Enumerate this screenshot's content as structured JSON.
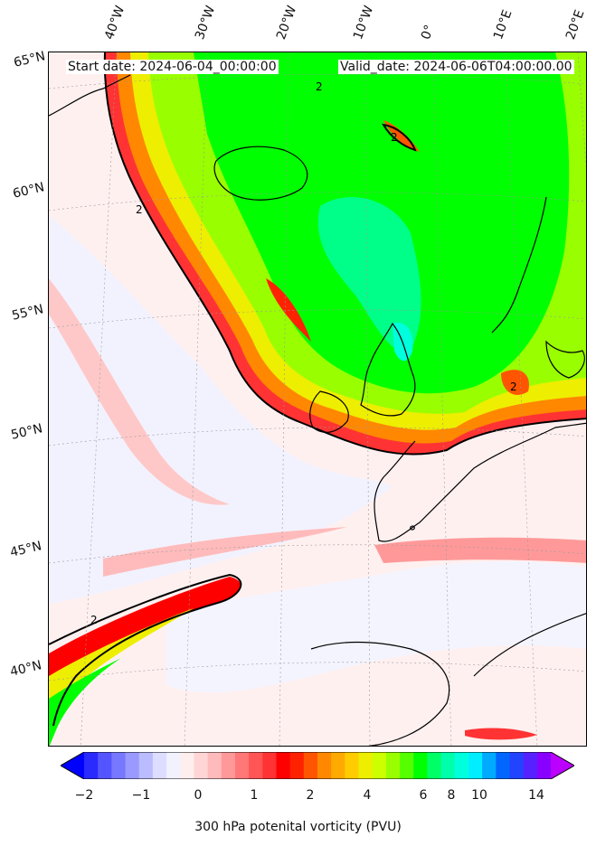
{
  "header": {
    "start_date": "Start date: 2024-06-04_00:00:00",
    "valid_date": "Valid_date: 2024-06-06T04:00:00.00"
  },
  "lon_labels": [
    "40°W",
    "30°W",
    "20°W",
    "10°W",
    "0°",
    "10°E",
    "20°E"
  ],
  "lat_labels": [
    "65°N",
    "60°N",
    "55°N",
    "50°N",
    "45°N",
    "40°N"
  ],
  "contour_label": "2",
  "colorbar": {
    "label": "300 hPa potenital vorticity (PVU)",
    "ticks": [
      "−2",
      "−1",
      "0",
      "1",
      "2",
      "4",
      "6",
      "8",
      "10",
      "14"
    ],
    "colors": [
      "#0000ff",
      "#2a2aff",
      "#5555ff",
      "#7777ff",
      "#9999ff",
      "#bbbbff",
      "#ddddff",
      "#f2f2ff",
      "#ffeeee",
      "#ffd5d5",
      "#ffbbbb",
      "#ff9999",
      "#ff7777",
      "#ff5555",
      "#ff3333",
      "#ff0000",
      "#ff2200",
      "#ff5500",
      "#ff8800",
      "#ffaa00",
      "#ffcc00",
      "#eeee00",
      "#ccff00",
      "#99ff00",
      "#55ff00",
      "#00ff00",
      "#00ff66",
      "#00ffaa",
      "#00ffdd",
      "#00eeff",
      "#00aaff",
      "#0066ff",
      "#2244ff",
      "#5522ff",
      "#8800ff",
      "#bb00ff"
    ]
  }
}
